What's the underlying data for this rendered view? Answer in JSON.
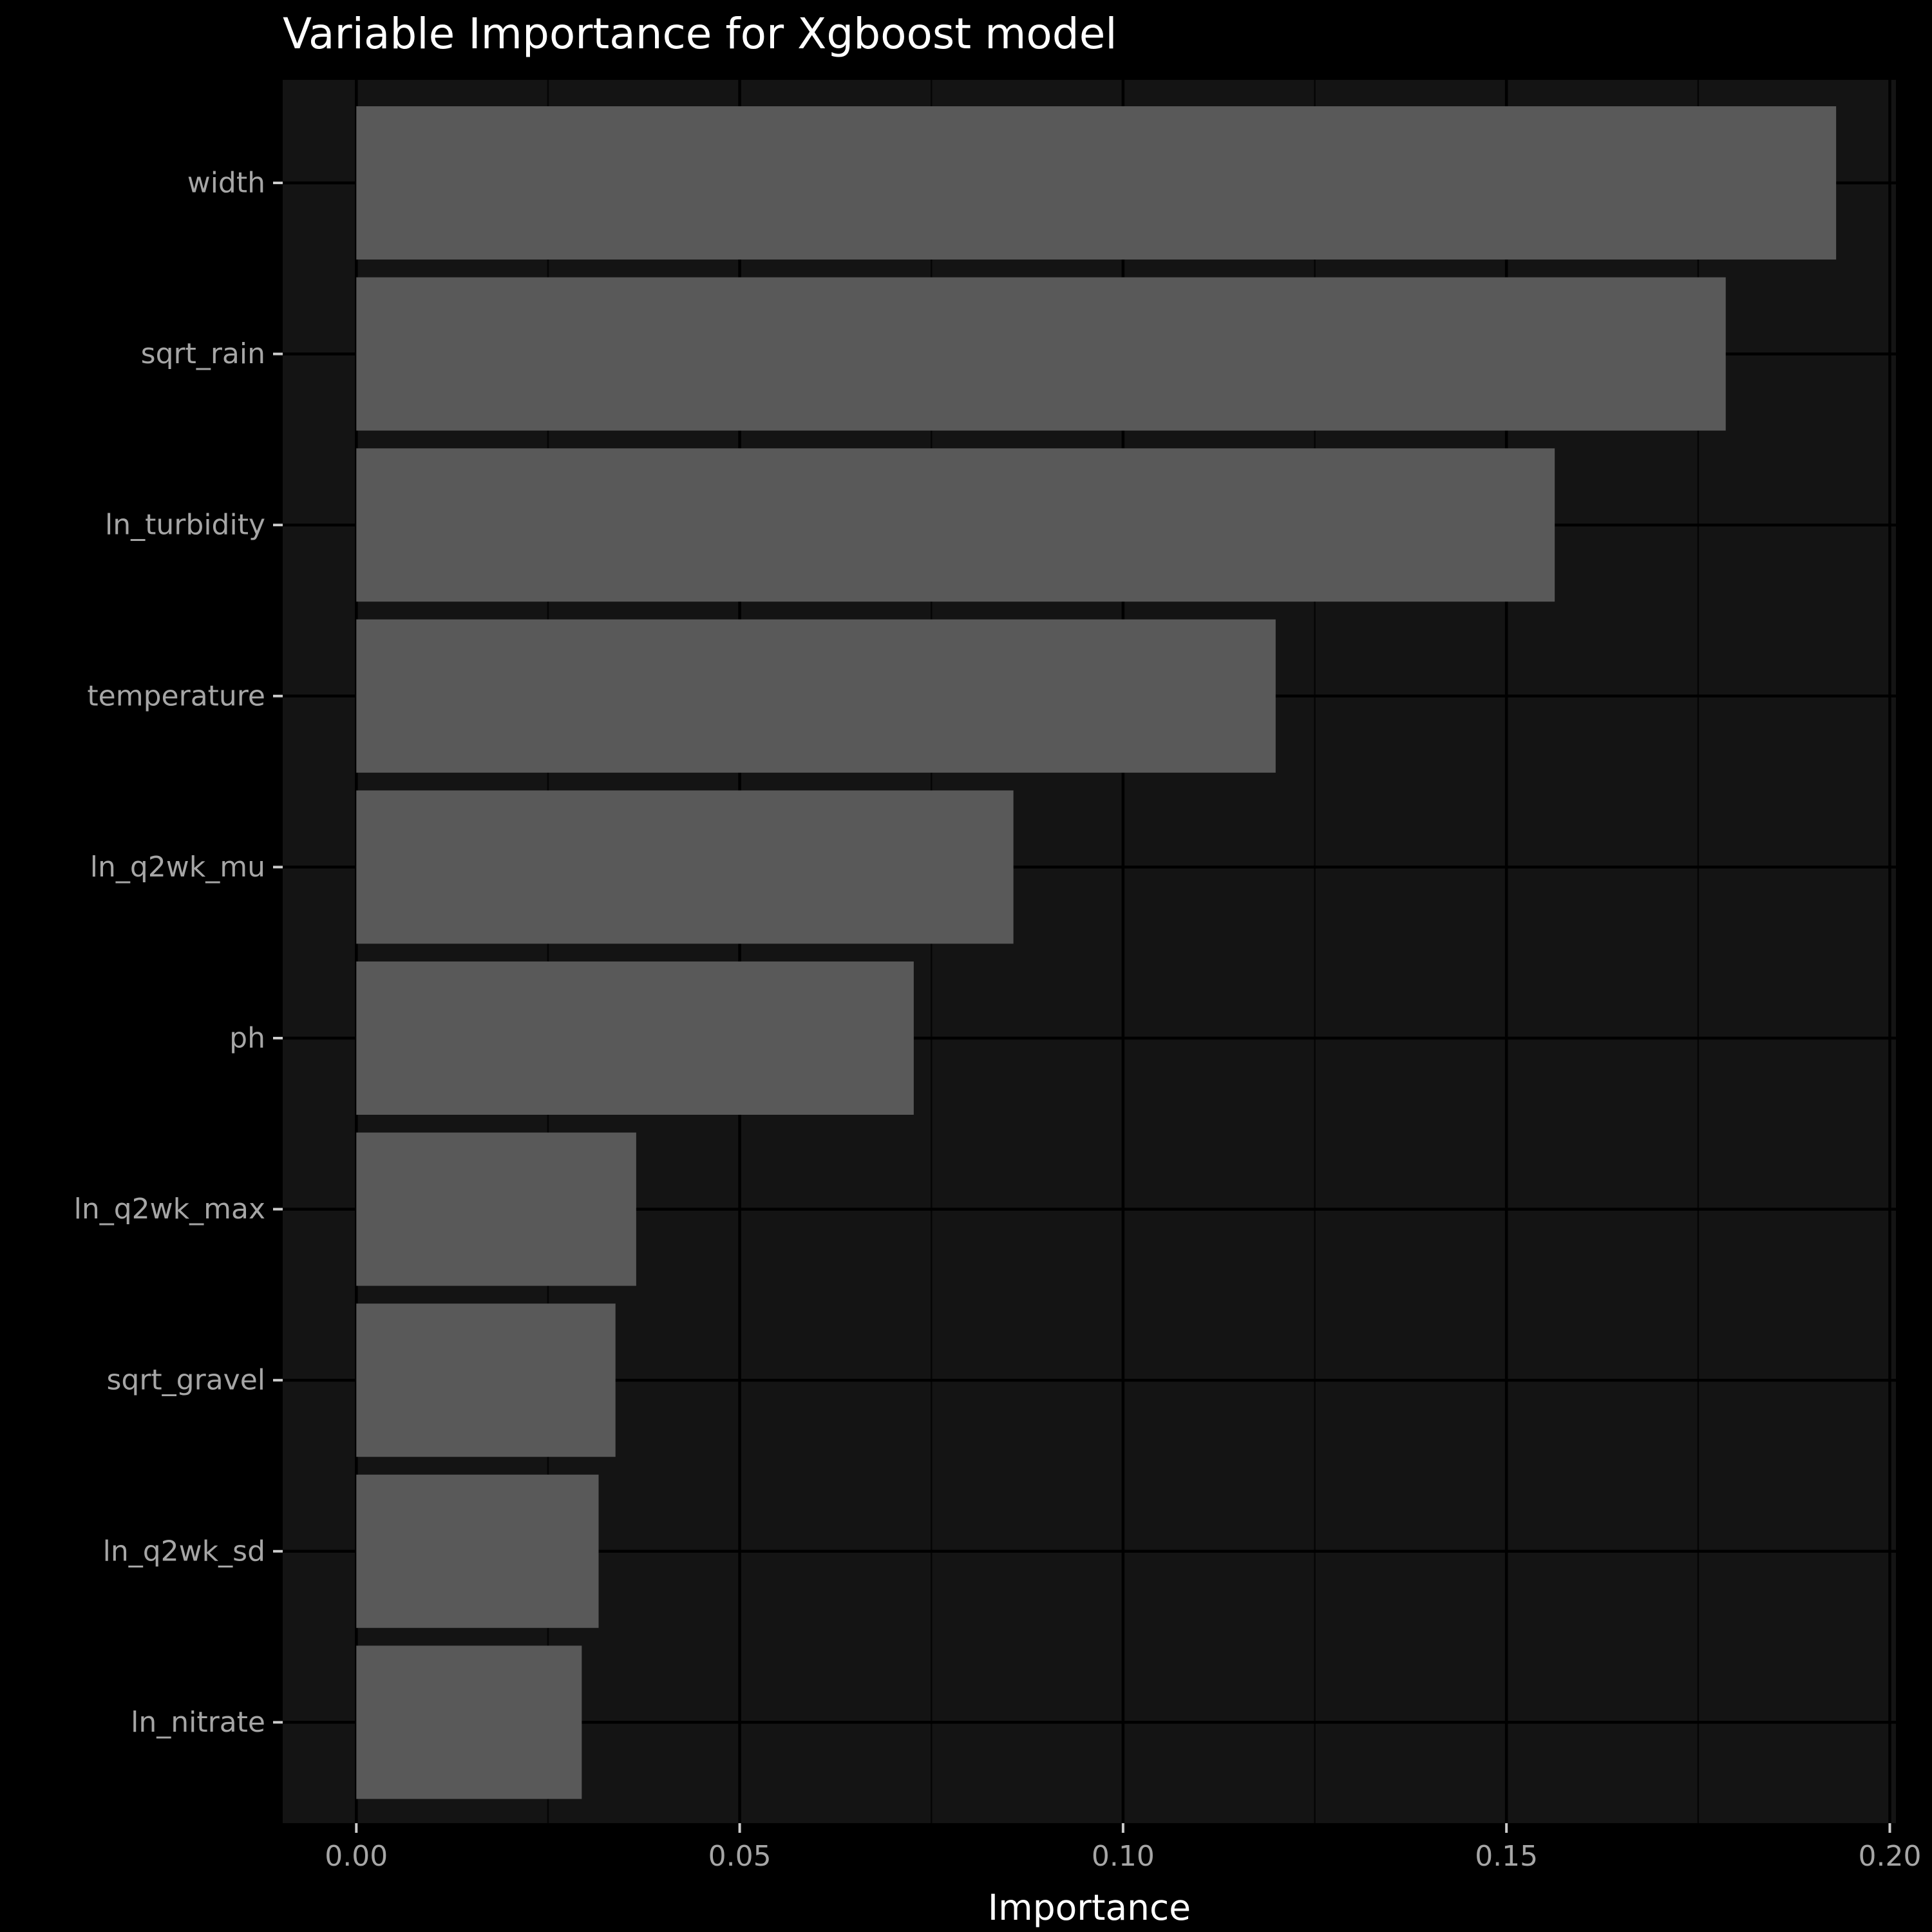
{
  "chart_data": {
    "type": "bar",
    "orientation": "horizontal",
    "title": "Variable Importance for Xgboost model",
    "xlabel": "Importance",
    "ylabel": "",
    "categories": [
      "width",
      "sqrt_rain",
      "ln_turbidity",
      "temperature",
      "ln_q2wk_mu",
      "ph",
      "ln_q2wk_max",
      "sqrt_gravel",
      "ln_q2wk_sd",
      "ln_nitrate"
    ],
    "values": [
      0.193,
      0.1786,
      0.1563,
      0.1199,
      0.0857,
      0.0727,
      0.0365,
      0.0338,
      0.0316,
      0.0294
    ],
    "xlim": [
      -0.0096,
      0.2008
    ],
    "x_ticks": [
      0,
      0.05,
      0.1,
      0.15,
      0.2
    ],
    "x_tick_labels": [
      "0.00",
      "0.05",
      "0.10",
      "0.15",
      "0.20"
    ],
    "grid": true,
    "legend": "none",
    "colors": {
      "page_background": "#000000",
      "panel_background": "#141414",
      "bar_fill": "#595959",
      "grid_major": "#000000",
      "grid_minor": "#050505",
      "tick_label": "#a6a6a6",
      "axis_title": "#ffffff",
      "title": "#ffffff"
    }
  }
}
